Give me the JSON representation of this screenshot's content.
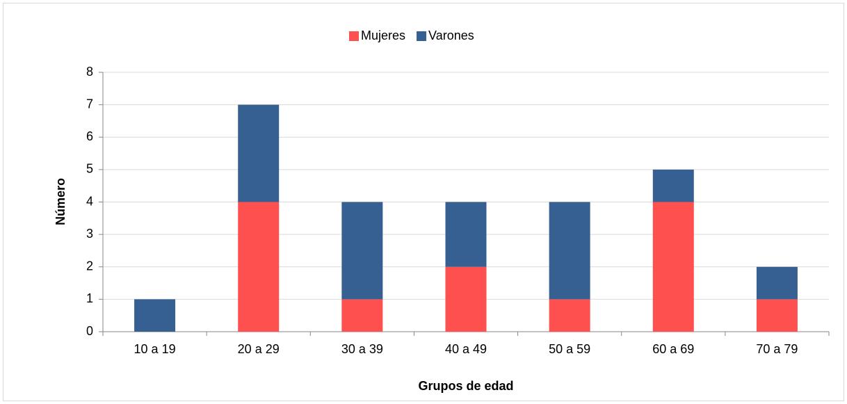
{
  "chart_data": {
    "type": "stacked-bar",
    "x_label": "Grupos de edad",
    "y_label": "Número",
    "categories": [
      "10 a 19",
      "20 a 29",
      "30 a 39",
      "40 a 49",
      "50 a 59",
      "60 a 69",
      "70 a 79"
    ],
    "series": [
      {
        "name": "Mujeres",
        "color": "#ff5050",
        "values": [
          0,
          4,
          1,
          2,
          1,
          4,
          1
        ]
      },
      {
        "name": "Varones",
        "color": "#376092",
        "values": [
          1,
          3,
          3,
          2,
          3,
          1,
          1
        ]
      }
    ],
    "ylim": [
      0,
      8
    ],
    "yticks": [
      0,
      1,
      2,
      3,
      4,
      5,
      6,
      7,
      8
    ],
    "grid": true,
    "legend": "top"
  }
}
